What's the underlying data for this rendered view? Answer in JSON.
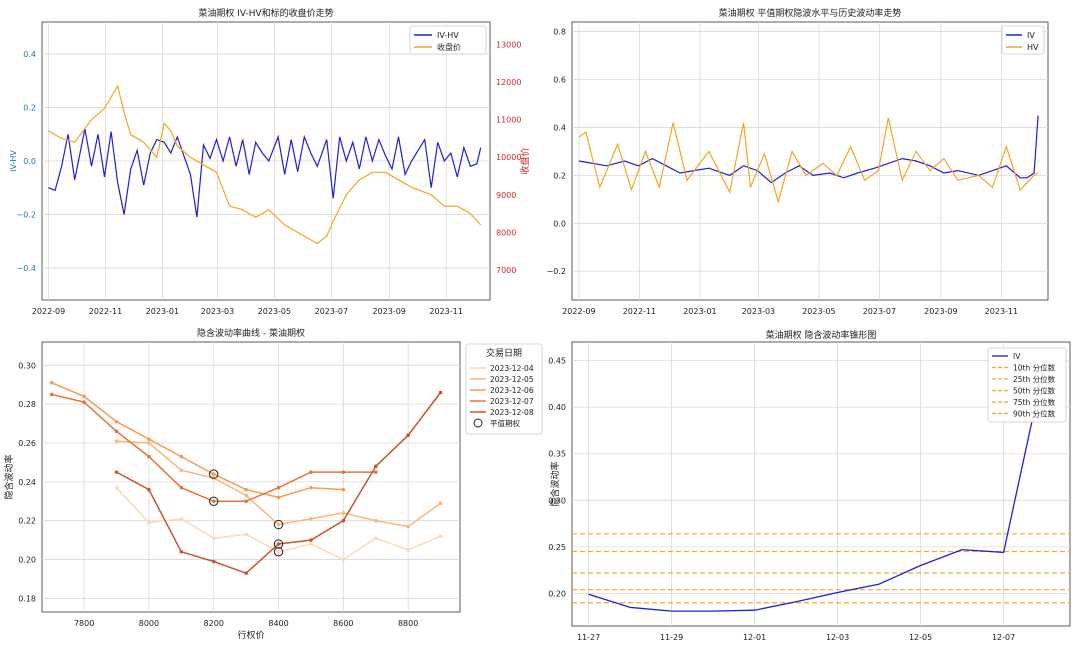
{
  "chart_data": [
    {
      "type": "line",
      "title": "菜油期权 IV-HV和标的收盘价走势",
      "ylabel": "IV-HV",
      "y2label": "收盘价",
      "ylim": [
        -0.52,
        0.52
      ],
      "y2lim": [
        6200,
        13600
      ],
      "xlim": [
        "2022-08-25",
        "2023-12-18"
      ],
      "x_ticks": [
        "2022-09-01",
        "2022-11-01",
        "2023-01-01",
        "2023-03-01",
        "2023-05-01",
        "2023-07-01",
        "2023-09-01",
        "2023-11-01"
      ],
      "x_tick_labels": [
        "2022-09",
        "2022-11",
        "2023-01",
        "2023-03",
        "2023-05",
        "2023-07",
        "2023-09",
        "2023-11"
      ],
      "y_ticks": [
        -0.4,
        -0.2,
        0.0,
        0.2,
        0.4
      ],
      "y_tick_labels": [
        "−0.4",
        "−0.2",
        "0.0",
        "0.2",
        "0.4"
      ],
      "y2_ticks": [
        7000,
        8000,
        9000,
        10000,
        11000,
        12000,
        13000
      ],
      "y2_tick_labels": [
        "7000",
        "8000",
        "9000",
        "10000",
        "11000",
        "12000",
        "13000"
      ],
      "legend_position": "upper-right",
      "grid": true,
      "series": [
        {
          "name": "IV-HV",
          "axis": "left",
          "color": "#1f1fd6",
          "x": [
            "2022-09-01",
            "2022-09-08",
            "2022-09-15",
            "2022-09-22",
            "2022-09-29",
            "2022-10-10",
            "2022-10-17",
            "2022-10-24",
            "2022-10-31",
            "2022-11-07",
            "2022-11-14",
            "2022-11-21",
            "2022-11-28",
            "2022-12-05",
            "2022-12-12",
            "2022-12-19",
            "2022-12-26",
            "2023-01-03",
            "2023-01-10",
            "2023-01-17",
            "2023-01-31",
            "2023-02-07",
            "2023-02-14",
            "2023-02-21",
            "2023-02-28",
            "2023-03-07",
            "2023-03-14",
            "2023-03-21",
            "2023-03-28",
            "2023-04-04",
            "2023-04-11",
            "2023-04-18",
            "2023-04-25",
            "2023-05-05",
            "2023-05-12",
            "2023-05-19",
            "2023-05-26",
            "2023-06-02",
            "2023-06-09",
            "2023-06-16",
            "2023-06-26",
            "2023-07-03",
            "2023-07-10",
            "2023-07-17",
            "2023-07-24",
            "2023-07-31",
            "2023-08-07",
            "2023-08-14",
            "2023-08-21",
            "2023-08-28",
            "2023-09-04",
            "2023-09-11",
            "2023-09-18",
            "2023-09-25",
            "2023-10-09",
            "2023-10-16",
            "2023-10-23",
            "2023-10-30",
            "2023-11-06",
            "2023-11-13",
            "2023-11-20",
            "2023-11-27",
            "2023-12-04",
            "2023-12-08"
          ],
          "values": [
            -0.1,
            -0.11,
            -0.02,
            0.1,
            -0.07,
            0.12,
            -0.02,
            0.1,
            -0.06,
            0.11,
            -0.08,
            -0.2,
            -0.03,
            0.04,
            -0.09,
            0.03,
            0.08,
            0.07,
            0.03,
            0.09,
            -0.05,
            -0.21,
            0.06,
            0.01,
            0.08,
            0.0,
            0.09,
            -0.02,
            0.08,
            -0.05,
            0.07,
            0.03,
            0.0,
            0.09,
            -0.05,
            0.08,
            -0.04,
            0.09,
            0.03,
            -0.02,
            0.08,
            -0.14,
            0.09,
            0.0,
            0.07,
            -0.03,
            0.09,
            0.0,
            0.08,
            0.02,
            -0.03,
            0.09,
            -0.05,
            0.0,
            0.08,
            -0.1,
            0.07,
            0.0,
            0.03,
            -0.06,
            0.05,
            -0.02,
            -0.01,
            0.05
          ]
        },
        {
          "name": "收盘价",
          "axis": "right",
          "color": "#f5a623",
          "x": [
            "2022-09-01",
            "2022-09-15",
            "2022-09-29",
            "2022-10-17",
            "2022-10-31",
            "2022-11-14",
            "2022-11-21",
            "2022-11-28",
            "2022-12-12",
            "2022-12-26",
            "2023-01-03",
            "2023-01-10",
            "2023-01-17",
            "2023-01-31",
            "2023-02-14",
            "2023-02-28",
            "2023-03-14",
            "2023-03-28",
            "2023-04-11",
            "2023-04-25",
            "2023-05-12",
            "2023-05-26",
            "2023-06-09",
            "2023-06-16",
            "2023-06-26",
            "2023-07-03",
            "2023-07-17",
            "2023-07-31",
            "2023-08-14",
            "2023-08-28",
            "2023-09-11",
            "2023-09-25",
            "2023-10-16",
            "2023-10-30",
            "2023-11-13",
            "2023-11-27",
            "2023-12-08"
          ],
          "values": [
            10700,
            10500,
            10400,
            11000,
            11300,
            11900,
            11200,
            10600,
            10400,
            10000,
            10900,
            10700,
            10300,
            10000,
            9800,
            9600,
            8700,
            8600,
            8400,
            8600,
            8200,
            8000,
            7800,
            7700,
            7900,
            8300,
            9000,
            9400,
            9600,
            9600,
            9400,
            9200,
            9000,
            8700,
            8700,
            8500,
            8200
          ]
        }
      ]
    },
    {
      "type": "line",
      "title": "菜油期权 平值期权隐波水平与历史波动率走势",
      "ylim": [
        -0.32,
        0.84
      ],
      "xlim": [
        "2022-08-25",
        "2023-12-18"
      ],
      "x_ticks": [
        "2022-09-01",
        "2022-11-01",
        "2023-01-01",
        "2023-03-01",
        "2023-05-01",
        "2023-07-01",
        "2023-09-01",
        "2023-11-01"
      ],
      "x_tick_labels": [
        "2022-09",
        "2022-11",
        "2023-01",
        "2023-03",
        "2023-05",
        "2023-07",
        "2023-09",
        "2023-11"
      ],
      "y_ticks": [
        -0.2,
        0.0,
        0.2,
        0.4,
        0.6,
        0.8
      ],
      "y_tick_labels": [
        "−0.2",
        "0.0",
        "0.2",
        "0.4",
        "0.6",
        "0.8"
      ],
      "legend_position": "upper-right",
      "grid": true,
      "series": [
        {
          "name": "IV",
          "color": "#1f1fd6",
          "x": [
            "2022-09-01",
            "2022-09-15",
            "2022-09-29",
            "2022-10-17",
            "2022-10-31",
            "2022-11-14",
            "2022-11-28",
            "2022-12-12",
            "2022-12-26",
            "2023-01-10",
            "2023-01-31",
            "2023-02-14",
            "2023-02-28",
            "2023-03-14",
            "2023-03-28",
            "2023-04-11",
            "2023-04-25",
            "2023-05-12",
            "2023-05-26",
            "2023-06-09",
            "2023-06-26",
            "2023-07-10",
            "2023-07-24",
            "2023-08-07",
            "2023-08-21",
            "2023-09-04",
            "2023-09-18",
            "2023-10-09",
            "2023-10-23",
            "2023-11-06",
            "2023-11-20",
            "2023-11-27",
            "2023-12-04",
            "2023-12-08"
          ],
          "values": [
            0.26,
            0.25,
            0.24,
            0.26,
            0.24,
            0.27,
            0.24,
            0.21,
            0.22,
            0.23,
            0.2,
            0.24,
            0.22,
            0.17,
            0.21,
            0.24,
            0.2,
            0.21,
            0.19,
            0.21,
            0.23,
            0.25,
            0.27,
            0.26,
            0.24,
            0.21,
            0.22,
            0.2,
            0.22,
            0.24,
            0.19,
            0.19,
            0.21,
            0.45
          ]
        },
        {
          "name": "HV",
          "color": "#f5a623",
          "x": [
            "2022-09-01",
            "2022-09-08",
            "2022-09-22",
            "2022-10-10",
            "2022-10-24",
            "2022-11-07",
            "2022-11-21",
            "2022-12-05",
            "2022-12-19",
            "2023-01-10",
            "2023-01-31",
            "2023-02-14",
            "2023-02-21",
            "2023-03-07",
            "2023-03-21",
            "2023-04-04",
            "2023-04-18",
            "2023-05-05",
            "2023-05-19",
            "2023-06-02",
            "2023-06-16",
            "2023-06-30",
            "2023-07-10",
            "2023-07-24",
            "2023-08-07",
            "2023-08-21",
            "2023-09-04",
            "2023-09-18",
            "2023-10-09",
            "2023-10-23",
            "2023-11-06",
            "2023-11-20",
            "2023-12-04",
            "2023-12-08"
          ],
          "values": [
            0.36,
            0.38,
            0.15,
            0.33,
            0.14,
            0.3,
            0.15,
            0.42,
            0.18,
            0.3,
            0.13,
            0.42,
            0.15,
            0.29,
            0.09,
            0.3,
            0.2,
            0.25,
            0.2,
            0.32,
            0.18,
            0.22,
            0.44,
            0.18,
            0.3,
            0.22,
            0.27,
            0.18,
            0.2,
            0.15,
            0.32,
            0.14,
            0.2,
            0.21
          ]
        }
      ]
    },
    {
      "type": "line",
      "title": "隐含波动率曲线 - 菜油期权",
      "xlabel": "行权价",
      "ylabel": "隐含波动率",
      "xlim": [
        7670,
        8960
      ],
      "ylim": [
        0.173,
        0.312
      ],
      "x_ticks": [
        7800,
        8000,
        8200,
        8400,
        8600,
        8800
      ],
      "x_tick_labels": [
        "7800",
        "8000",
        "8200",
        "8400",
        "8600",
        "8800"
      ],
      "y_ticks": [
        0.18,
        0.2,
        0.22,
        0.24,
        0.26,
        0.28,
        0.3
      ],
      "y_tick_labels": [
        "0.18",
        "0.20",
        "0.22",
        "0.24",
        "0.26",
        "0.28",
        "0.30"
      ],
      "legend_title": "交易日期",
      "legend_position": "upper-right",
      "atm_legend_label": "平值期权",
      "grid": true,
      "series": [
        {
          "name": "2023-12-04",
          "color": "#fdd9b5",
          "x": [
            7900,
            8000,
            8100,
            8200,
            8300,
            8400,
            8500,
            8600,
            8700,
            8800,
            8900
          ],
          "values": [
            0.237,
            0.219,
            0.221,
            0.211,
            0.213,
            0.204,
            0.208,
            0.2,
            0.211,
            0.205,
            0.212
          ],
          "atm_strike": 8400
        },
        {
          "name": "2023-12-05",
          "color": "#fdb57a",
          "x": [
            7900,
            8000,
            8100,
            8200,
            8300,
            8400,
            8500,
            8600,
            8700,
            8800,
            8900
          ],
          "values": [
            0.261,
            0.26,
            0.246,
            0.242,
            0.233,
            0.218,
            0.221,
            0.224,
            0.22,
            0.217,
            0.229
          ],
          "atm_strike": 8400
        },
        {
          "name": "2023-12-06",
          "color": "#f89b52",
          "x": [
            7700,
            7800,
            7900,
            8000,
            8100,
            8200,
            8300,
            8400,
            8500,
            8600
          ],
          "values": [
            0.291,
            0.284,
            0.271,
            0.262,
            0.253,
            0.244,
            0.236,
            0.232,
            0.237,
            0.236
          ],
          "atm_strike": 8200
        },
        {
          "name": "2023-12-07",
          "color": "#e8733a",
          "x": [
            7700,
            7800,
            7900,
            8000,
            8100,
            8200,
            8300,
            8400,
            8500,
            8600,
            8700
          ],
          "values": [
            0.285,
            0.281,
            0.266,
            0.253,
            0.237,
            0.23,
            0.23,
            0.237,
            0.245,
            0.245,
            0.245
          ],
          "atm_strike": 8200
        },
        {
          "name": "2023-12-08",
          "color": "#c5582a",
          "x": [
            7900,
            8000,
            8100,
            8200,
            8300,
            8400,
            8500,
            8600,
            8700,
            8800,
            8900
          ],
          "values": [
            0.245,
            0.236,
            0.204,
            0.199,
            0.193,
            0.208,
            0.21,
            0.22,
            0.248,
            0.264,
            0.286
          ],
          "atm_strike": 8400
        }
      ]
    },
    {
      "type": "line",
      "title": "菜油期权 隐含波动率锥形图",
      "ylabel": "隐含波动率",
      "xlim": [
        "2023-11-26.6",
        "2023-12-08.6"
      ],
      "ylim": [
        0.165,
        0.47
      ],
      "x_ticks": [
        "2023-11-27",
        "2023-11-29",
        "2023-12-01",
        "2023-12-03",
        "2023-12-05",
        "2023-12-07"
      ],
      "x_tick_labels": [
        "11-27",
        "11-29",
        "12-01",
        "12-03",
        "12-05",
        "12-07"
      ],
      "y_ticks": [
        0.2,
        0.25,
        0.3,
        0.35,
        0.4,
        0.45
      ],
      "y_tick_labels": [
        "0.20",
        "0.25",
        "0.30",
        "0.35",
        "0.40",
        "0.45"
      ],
      "legend_position": "upper-right",
      "grid": true,
      "series": [
        {
          "name": "IV",
          "color": "#1f1fd6",
          "x": [
            "2023-11-27",
            "2023-11-28",
            "2023-11-29",
            "2023-11-30",
            "2023-12-01",
            "2023-12-02",
            "2023-12-03",
            "2023-12-04",
            "2023-12-05",
            "2023-12-06",
            "2023-12-07",
            "2023-12-08"
          ],
          "values": [
            0.199,
            0.185,
            0.181,
            0.181,
            0.182,
            0.191,
            0.201,
            0.21,
            0.23,
            0.247,
            0.244,
            0.45
          ]
        }
      ],
      "hlines": [
        {
          "name": "10th 分位数",
          "value": 0.19,
          "color": "#f5a623"
        },
        {
          "name": "25th 分位数",
          "value": 0.204,
          "color": "#f5a623"
        },
        {
          "name": "50th 分位数",
          "value": 0.222,
          "color": "#f5a623"
        },
        {
          "name": "75th 分位数",
          "value": 0.245,
          "color": "#f5a623"
        },
        {
          "name": "90th 分位数",
          "value": 0.264,
          "color": "#f5a623"
        }
      ]
    }
  ]
}
